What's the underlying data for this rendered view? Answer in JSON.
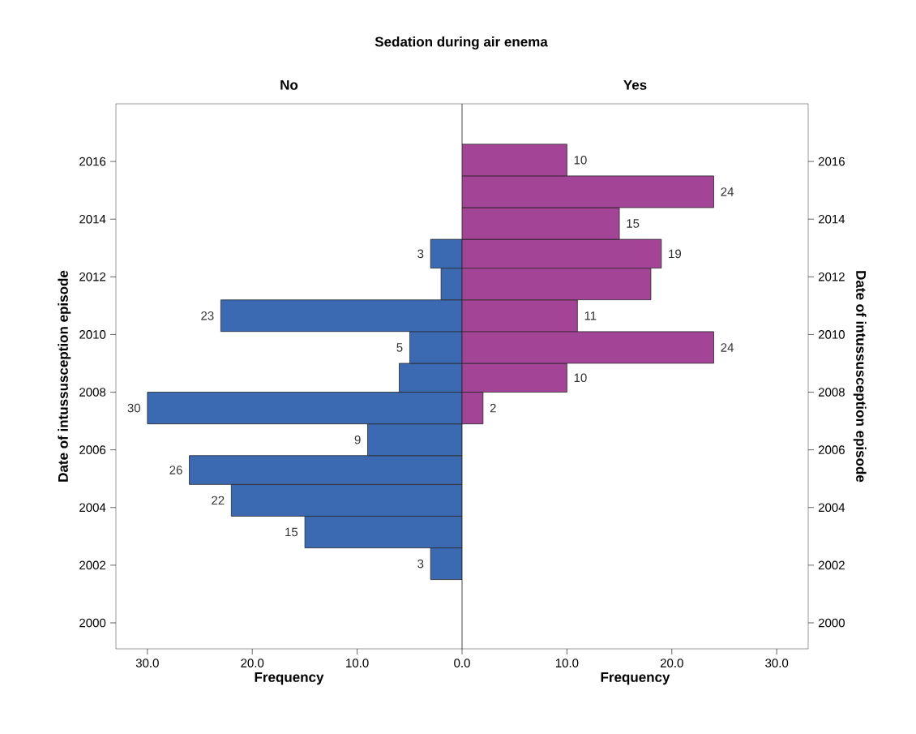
{
  "chart_data": [
    {
      "type": "histogram",
      "orientation": "horizontal",
      "title": "No",
      "xlabel": "Frequency",
      "ylabel": "Date of intussusception episode",
      "annotations": [
        "Sedation during air enema"
      ],
      "bins": [
        2001.5,
        2002.6,
        2003.7,
        2004.8,
        2005.8,
        2006.9,
        2008.0,
        2009.0,
        2010.1,
        2011.2,
        2012.3,
        2013.3
      ],
      "values": [
        3,
        15,
        22,
        26,
        9,
        30,
        6,
        5,
        23,
        2,
        3
      ],
      "value_labels": [
        "3",
        "15",
        "22",
        "26",
        "9",
        "30",
        null,
        "5",
        "23",
        null,
        "3"
      ],
      "color": "#3b6ab3",
      "xlim": [
        33,
        0
      ],
      "xticks": [
        {
          "value": 30,
          "label": "30.0"
        },
        {
          "value": 20,
          "label": "20.0"
        },
        {
          "value": 10,
          "label": "10.0"
        }
      ],
      "ylim": [
        1999.1,
        2018.0
      ],
      "yticks": [
        2000,
        2002,
        2004,
        2006,
        2008,
        2010,
        2012,
        2014,
        2016
      ]
    },
    {
      "type": "histogram",
      "orientation": "horizontal",
      "title": "Yes",
      "xlabel": "Frequency",
      "ylabel": "Date of intussusception episode",
      "bins": [
        2006.9,
        2008.0,
        2009.0,
        2010.1,
        2011.2,
        2012.3,
        2013.3,
        2014.4,
        2015.5,
        2016.6
      ],
      "values": [
        2,
        10,
        24,
        11,
        18,
        19,
        15,
        24,
        10
      ],
      "value_labels": [
        "2",
        "10",
        "24",
        "11",
        null,
        "19",
        "15",
        "24",
        "10"
      ],
      "color": "#a34496",
      "xlim": [
        0,
        33
      ],
      "xticks": [
        {
          "value": 0,
          "label": "0.0"
        },
        {
          "value": 10,
          "label": "10.0"
        },
        {
          "value": 20,
          "label": "20.0"
        },
        {
          "value": 30,
          "label": "30.0"
        }
      ],
      "ylim": [
        1999.1,
        2018.0
      ],
      "yticks": [
        2000,
        2002,
        2004,
        2006,
        2008,
        2010,
        2012,
        2014,
        2016
      ]
    }
  ]
}
